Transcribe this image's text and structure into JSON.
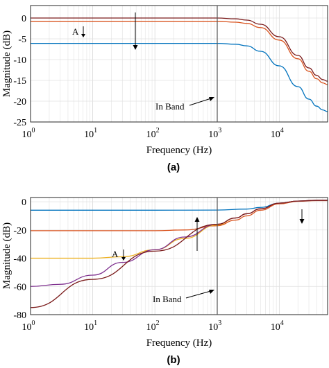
{
  "chart_data": [
    {
      "type": "line",
      "caption": "(a)",
      "xlabel": "Frequency (Hz)",
      "ylabel": "Magnitude (dB)",
      "xscale": "log",
      "xlim": [
        1,
        60000
      ],
      "ylim": [
        -25,
        3
      ],
      "yticks": [
        0,
        -5,
        -10,
        -15,
        -20,
        -25
      ],
      "xticks": [
        {
          "base": "10",
          "exp": "0"
        },
        {
          "base": "10",
          "exp": "1"
        },
        {
          "base": "10",
          "exp": "2"
        },
        {
          "base": "10",
          "exp": "3"
        },
        {
          "base": "10",
          "exp": "4"
        }
      ],
      "grid": true,
      "band_edge_hz": 1000,
      "annotations": {
        "in_band": "In Band",
        "a_label": "A"
      },
      "series": [
        {
          "color": "#7a1a1a",
          "x": [
            1,
            100,
            1000,
            2000,
            3000,
            5000,
            10000,
            20000,
            30000,
            40000,
            50000,
            60000
          ],
          "y": [
            0,
            0,
            0,
            -0.2,
            -0.5,
            -1.5,
            -4.5,
            -9,
            -12,
            -13.8,
            -14.8,
            -15.2
          ]
        },
        {
          "color": "#d9531e",
          "x": [
            1,
            100,
            1000,
            2000,
            3000,
            5000,
            10000,
            20000,
            30000,
            40000,
            50000,
            60000
          ],
          "y": [
            -0.8,
            -0.8,
            -0.8,
            -1.0,
            -1.3,
            -2.3,
            -5.3,
            -9.8,
            -12.8,
            -14.6,
            -15.6,
            -16.0
          ]
        },
        {
          "color": "#0072bd",
          "x": [
            1,
            100,
            1000,
            2000,
            3000,
            5000,
            10000,
            20000,
            30000,
            40000,
            50000,
            60000
          ],
          "y": [
            -6.1,
            -6.1,
            -6.1,
            -6.3,
            -6.7,
            -8.0,
            -11.5,
            -16.5,
            -19.5,
            -21.2,
            -22.1,
            -22.5
          ]
        }
      ]
    },
    {
      "type": "line",
      "caption": "(b)",
      "xlabel": "Frequency (Hz)",
      "ylabel": "Magnitude (dB)",
      "xscale": "log",
      "xlim": [
        1,
        60000
      ],
      "ylim": [
        -80,
        3
      ],
      "yticks": [
        0,
        -20,
        -40,
        -60,
        -80
      ],
      "xticks": [
        {
          "base": "10",
          "exp": "0"
        },
        {
          "base": "10",
          "exp": "1"
        },
        {
          "base": "10",
          "exp": "2"
        },
        {
          "base": "10",
          "exp": "3"
        },
        {
          "base": "10",
          "exp": "4"
        }
      ],
      "grid": true,
      "band_edge_hz": 1000,
      "annotations": {
        "in_band": "In Band",
        "a_label": "A"
      },
      "series": [
        {
          "color": "#0072bd",
          "x": [
            1,
            100,
            1000,
            3000,
            5000,
            10000,
            20000,
            40000,
            60000
          ],
          "y": [
            -6,
            -6,
            -5.9,
            -5.2,
            -4.0,
            -1.0,
            0.5,
            1.0,
            1.0
          ]
        },
        {
          "color": "#d9531e",
          "x": [
            1,
            100,
            300,
            1000,
            2000,
            3000,
            5000,
            10000,
            20000,
            40000,
            60000
          ],
          "y": [
            -20.5,
            -20.5,
            -20,
            -17,
            -13,
            -10,
            -6,
            -1.5,
            0.3,
            0.8,
            0.8
          ]
        },
        {
          "color": "#edb120",
          "x": [
            1,
            10,
            30,
            100,
            300,
            1000,
            2000,
            3000,
            5000,
            10000,
            20000,
            40000,
            60000
          ],
          "y": [
            -40,
            -40,
            -39,
            -34,
            -26,
            -16.5,
            -11.5,
            -8.5,
            -5,
            -1.0,
            0.5,
            1.0,
            1.0
          ]
        },
        {
          "color": "#7e2f8e",
          "x": [
            1,
            3,
            10,
            30,
            100,
            300,
            1000,
            2000,
            3000,
            5000,
            10000,
            20000,
            40000,
            60000
          ],
          "y": [
            -60,
            -58.5,
            -52,
            -43,
            -34,
            -25,
            -16,
            -11.5,
            -8.5,
            -5,
            -1.0,
            0.5,
            1.0,
            1.0
          ]
        },
        {
          "color": "#7a1a1a",
          "x": [
            1,
            10,
            100,
            1000,
            2000,
            3000,
            5000,
            10000,
            20000,
            40000,
            60000
          ],
          "y": [
            -75,
            -55,
            -35,
            -16,
            -11.5,
            -8.5,
            -5,
            -1.0,
            0.5,
            1.0,
            1.0
          ]
        }
      ]
    }
  ]
}
